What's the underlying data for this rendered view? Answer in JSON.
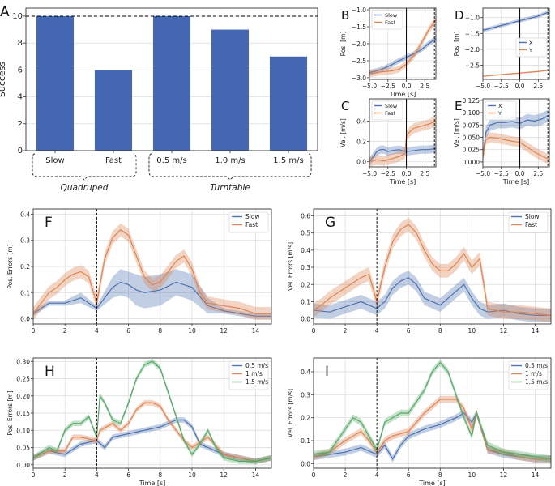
{
  "colors": {
    "blue": "#4c72b0",
    "orange": "#dd8452",
    "green": "#55a868",
    "bar": "#4567b3",
    "grid": "#d9d9d9",
    "axis": "#333333"
  },
  "chart_data": [
    {
      "panel_letter": "A",
      "type": "bar",
      "ylabel": "Success",
      "ylim": [
        0,
        10.6
      ],
      "yticks": [
        0,
        2,
        4,
        6,
        8,
        10
      ],
      "categories": [
        "Slow",
        "Fast",
        "0.5 m/s",
        "1.0 m/s",
        "1.5 m/s"
      ],
      "values": [
        10,
        6,
        10,
        9,
        7
      ],
      "reference_line": 10,
      "groups": [
        {
          "label": "Quadruped",
          "members": [
            0,
            1
          ]
        },
        {
          "label": "Turntable",
          "members": [
            2,
            3,
            4
          ]
        }
      ]
    },
    {
      "panel_letter": "B",
      "type": "line",
      "xlabel": "Time [s]",
      "ylabel": "Pos. [m]",
      "xlim": [
        -5,
        4
      ],
      "ylim": [
        -3.05,
        -0.95
      ],
      "xticks": [
        -5.0,
        -2.5,
        0.0,
        2.5
      ],
      "yticks": [
        -3.0,
        -2.5,
        -2.0,
        -1.5,
        -1.0
      ],
      "vline_solid": 0,
      "vline_dashed": 3.8,
      "legend": "top-left",
      "series": [
        {
          "name": "Slow",
          "color": "blue",
          "x": [
            -5,
            -4,
            -3,
            -2,
            -1,
            0,
            1,
            2,
            3,
            4
          ],
          "y": [
            -2.85,
            -2.8,
            -2.72,
            -2.62,
            -2.5,
            -2.4,
            -2.3,
            -2.18,
            -2.0,
            -1.85
          ],
          "band": 0.08
        },
        {
          "name": "Fast",
          "color": "orange",
          "x": [
            -5,
            -4,
            -3,
            -2,
            -1,
            0,
            1,
            2,
            3,
            4
          ],
          "y": [
            -2.88,
            -2.85,
            -2.82,
            -2.8,
            -2.75,
            -2.6,
            -2.35,
            -2.0,
            -1.6,
            -1.3
          ],
          "band": 0.1
        }
      ]
    },
    {
      "panel_letter": "C",
      "type": "line",
      "xlabel": "Time [s]",
      "ylabel": "Vel. [m/s]",
      "xlim": [
        -5,
        4
      ],
      "ylim": [
        -0.05,
        0.62
      ],
      "xticks": [
        -5.0,
        -2.5,
        0.0,
        2.5
      ],
      "yticks": [
        0.0,
        0.2,
        0.4
      ],
      "vline_solid": 0,
      "vline_dashed": 3.8,
      "legend": "top-left",
      "series": [
        {
          "name": "Slow",
          "color": "blue",
          "x": [
            -5,
            -4.5,
            -4,
            -3.5,
            -3,
            -2.5,
            -2,
            -1,
            0,
            1,
            2,
            3,
            4
          ],
          "y": [
            0.0,
            0.05,
            0.1,
            0.12,
            0.12,
            0.1,
            0.11,
            0.12,
            0.1,
            0.11,
            0.12,
            0.12,
            0.13
          ],
          "band": 0.04
        },
        {
          "name": "Fast",
          "color": "orange",
          "x": [
            -5,
            -4,
            -3,
            -2,
            -1,
            -0.2,
            0,
            0.5,
            1,
            2,
            3,
            4
          ],
          "y": [
            0.0,
            0.02,
            0.01,
            0.03,
            0.05,
            0.08,
            0.25,
            0.3,
            0.33,
            0.35,
            0.37,
            0.4
          ],
          "band": 0.05
        }
      ]
    },
    {
      "panel_letter": "D",
      "type": "line",
      "xlabel": "",
      "ylabel": "Pos. [m]",
      "xlim": [
        -5,
        4
      ],
      "ylim": [
        -2.95,
        -0.7
      ],
      "xticks": [
        -5.0,
        -2.5,
        0.0,
        2.5
      ],
      "yticks": [
        -2.5,
        -2.0,
        -1.5,
        -1.0
      ],
      "vline_solid": 0,
      "vline_dashed": 3.8,
      "legend": "center-right",
      "series": [
        {
          "name": "X",
          "color": "blue",
          "x": [
            -5,
            -2.5,
            0,
            2.5,
            4
          ],
          "y": [
            -1.4,
            -1.25,
            -1.1,
            -0.95,
            -0.82
          ],
          "band": 0.06
        },
        {
          "name": "Y",
          "color": "orange",
          "x": [
            -5,
            -2.5,
            0,
            2.5,
            4
          ],
          "y": [
            -2.85,
            -2.8,
            -2.75,
            -2.7,
            -2.66
          ],
          "band": 0.02
        }
      ]
    },
    {
      "panel_letter": "E",
      "type": "line",
      "xlabel": "Time [s]",
      "ylabel": "Vel. [m/s]",
      "xlim": [
        -5,
        4
      ],
      "ylim": [
        -0.01,
        0.128
      ],
      "xticks": [
        -5.0,
        -2.5,
        0.0,
        2.5
      ],
      "yticks": [
        0.0,
        0.025,
        0.05,
        0.075,
        0.1,
        0.125
      ],
      "vline_solid": 0,
      "vline_dashed": 3.8,
      "legend": "top-left",
      "series": [
        {
          "name": "X",
          "color": "blue",
          "x": [
            -5,
            -4.6,
            -4,
            -3,
            -2,
            -1,
            0,
            1,
            2,
            3,
            4
          ],
          "y": [
            0.01,
            0.06,
            0.075,
            0.08,
            0.08,
            0.082,
            0.078,
            0.085,
            0.083,
            0.087,
            0.095
          ],
          "band": 0.012
        },
        {
          "name": "Y",
          "color": "orange",
          "x": [
            -5,
            -4.6,
            -4,
            -3,
            -2,
            -1,
            0,
            1,
            2,
            3,
            4
          ],
          "y": [
            0.01,
            0.045,
            0.05,
            0.048,
            0.045,
            0.042,
            0.04,
            0.03,
            0.02,
            0.012,
            0.005
          ],
          "band": 0.01
        }
      ]
    },
    {
      "panel_letter": "F",
      "type": "line",
      "xlabel": "",
      "ylabel": "Pos. Errors [m]",
      "xlim": [
        0,
        15
      ],
      "ylim": [
        -0.02,
        0.42
      ],
      "xticks": [
        0,
        2,
        4,
        6,
        8,
        10,
        12,
        14
      ],
      "yticks": [
        0.0,
        0.1,
        0.2,
        0.3,
        0.4
      ],
      "vline_dashed": 4,
      "legend": "top-right",
      "series": [
        {
          "name": "Slow",
          "color": "blue",
          "x": [
            0,
            0.5,
            1,
            2,
            3,
            4,
            5,
            5.5,
            6,
            6.5,
            7,
            8,
            9,
            10,
            11,
            12,
            13,
            14,
            15
          ],
          "y": [
            0.02,
            0.04,
            0.06,
            0.06,
            0.08,
            0.04,
            0.12,
            0.14,
            0.13,
            0.11,
            0.1,
            0.11,
            0.14,
            0.12,
            0.05,
            0.03,
            0.02,
            0.01,
            0.01
          ],
          "band": [
            0.01,
            0.01,
            0.01,
            0.01,
            0.02,
            0.01,
            0.04,
            0.05,
            0.05,
            0.06,
            0.06,
            0.06,
            0.05,
            0.05,
            0.03,
            0.01,
            0.01,
            0.01,
            0.01
          ]
        },
        {
          "name": "Fast",
          "color": "orange",
          "x": [
            0,
            0.5,
            1,
            1.5,
            2,
            2.5,
            3,
            3.5,
            4,
            4.5,
            5,
            5.5,
            6,
            6.5,
            7,
            7.5,
            8,
            8.5,
            9,
            9.5,
            10,
            10.5,
            11,
            12,
            13,
            14,
            15
          ],
          "y": [
            0.02,
            0.06,
            0.1,
            0.12,
            0.15,
            0.17,
            0.18,
            0.16,
            0.06,
            0.23,
            0.31,
            0.34,
            0.32,
            0.24,
            0.16,
            0.13,
            0.14,
            0.18,
            0.22,
            0.24,
            0.19,
            0.1,
            0.06,
            0.05,
            0.04,
            0.02,
            0.02
          ],
          "band": 0.025
        }
      ]
    },
    {
      "panel_letter": "G",
      "type": "line",
      "xlabel": "",
      "ylabel": "Vel. Errors [m/s]",
      "xlim": [
        0,
        15
      ],
      "ylim": [
        -0.03,
        0.64
      ],
      "xticks": [
        0,
        2,
        4,
        6,
        8,
        10,
        12,
        14
      ],
      "yticks": [
        0.0,
        0.1,
        0.2,
        0.3,
        0.4,
        0.5,
        0.6
      ],
      "vline_dashed": 4,
      "legend": "top-right",
      "series": [
        {
          "name": "Slow",
          "color": "blue",
          "x": [
            0,
            1,
            2,
            3,
            4,
            4.5,
            5,
            5.5,
            6,
            6.5,
            7,
            8,
            9,
            9.5,
            10,
            10.5,
            11,
            12,
            13,
            14,
            15
          ],
          "y": [
            0.05,
            0.04,
            0.07,
            0.1,
            0.06,
            0.1,
            0.18,
            0.22,
            0.24,
            0.2,
            0.12,
            0.08,
            0.16,
            0.2,
            0.12,
            0.06,
            0.04,
            0.05,
            0.03,
            0.02,
            0.02
          ],
          "band": 0.04
        },
        {
          "name": "Fast",
          "color": "orange",
          "x": [
            0,
            0.5,
            1,
            1.5,
            2,
            2.5,
            3,
            3.5,
            4,
            4.5,
            5,
            5.5,
            6,
            6.5,
            7,
            7.5,
            8,
            8.5,
            9,
            9.5,
            10,
            10.5,
            11,
            12,
            13,
            14,
            15
          ],
          "y": [
            0.05,
            0.08,
            0.12,
            0.15,
            0.18,
            0.21,
            0.24,
            0.26,
            0.1,
            0.3,
            0.45,
            0.52,
            0.55,
            0.5,
            0.4,
            0.32,
            0.28,
            0.28,
            0.32,
            0.38,
            0.3,
            0.35,
            0.06,
            0.04,
            0.04,
            0.03,
            0.02
          ],
          "band": 0.04
        }
      ]
    },
    {
      "panel_letter": "H",
      "type": "line",
      "xlabel": "Time [s]",
      "ylabel": "Pos. Errors [m]",
      "xlim": [
        0,
        15
      ],
      "ylim": [
        -0.01,
        0.31
      ],
      "xticks": [
        0,
        2,
        4,
        6,
        8,
        10,
        12,
        14
      ],
      "yticks": [
        0.0,
        0.05,
        0.1,
        0.15,
        0.2,
        0.25,
        0.3
      ],
      "vline_dashed": 4,
      "legend": "top-right",
      "series": [
        {
          "name": "0.5 m/s",
          "color": "blue",
          "x": [
            0,
            1,
            2,
            3,
            4,
            4.5,
            5,
            6,
            7,
            8,
            9,
            9.5,
            10,
            10.5,
            11,
            12,
            13,
            14,
            15
          ],
          "y": [
            0.02,
            0.04,
            0.03,
            0.06,
            0.07,
            0.05,
            0.08,
            0.09,
            0.1,
            0.11,
            0.13,
            0.13,
            0.11,
            0.06,
            0.05,
            0.03,
            0.02,
            0.01,
            0.02
          ],
          "band": 0.008
        },
        {
          "name": "1 m/s",
          "color": "orange",
          "x": [
            0,
            1,
            2,
            2.5,
            3,
            4,
            4.2,
            5,
            5.5,
            6,
            6.5,
            7,
            7.5,
            8,
            8.5,
            9,
            9.5,
            10,
            11,
            12,
            13,
            14,
            15
          ],
          "y": [
            0.02,
            0.04,
            0.04,
            0.08,
            0.08,
            0.07,
            0.1,
            0.12,
            0.1,
            0.12,
            0.16,
            0.18,
            0.18,
            0.17,
            0.13,
            0.1,
            0.07,
            0.05,
            0.08,
            0.03,
            0.02,
            0.01,
            0.02
          ],
          "band": 0.008
        },
        {
          "name": "1.5 m/s",
          "color": "green",
          "x": [
            0,
            1,
            1.5,
            2,
            2.5,
            3,
            3.5,
            4,
            4.2,
            4.5,
            5,
            5.5,
            6,
            6.5,
            7,
            7.5,
            8,
            8.5,
            9,
            9.5,
            10,
            10.5,
            11,
            11.5,
            12,
            13,
            14,
            15
          ],
          "y": [
            0.02,
            0.05,
            0.04,
            0.1,
            0.12,
            0.12,
            0.14,
            0.08,
            0.2,
            0.18,
            0.13,
            0.12,
            0.18,
            0.25,
            0.29,
            0.3,
            0.28,
            0.21,
            0.14,
            0.07,
            0.03,
            0.06,
            0.1,
            0.05,
            0.02,
            0.01,
            0.01,
            0.02
          ],
          "band": 0.008
        }
      ]
    },
    {
      "panel_letter": "I",
      "type": "line",
      "xlabel": "Time [s]",
      "ylabel": "Vel. Errors [m/s]",
      "xlim": [
        0,
        15
      ],
      "ylim": [
        -0.02,
        0.46
      ],
      "xticks": [
        0,
        2,
        4,
        6,
        8,
        10,
        12,
        14
      ],
      "yticks": [
        0.0,
        0.1,
        0.2,
        0.3,
        0.4
      ],
      "vline_dashed": 4,
      "legend": "top-right",
      "series": [
        {
          "name": "0.5 m/s",
          "color": "blue",
          "x": [
            0,
            1,
            2,
            3,
            4,
            4.5,
            5,
            5.5,
            6,
            7,
            8,
            9,
            9.5,
            10,
            10.3,
            11,
            12,
            13,
            14,
            15
          ],
          "y": [
            0.03,
            0.04,
            0.05,
            0.07,
            0.04,
            0.08,
            0.02,
            0.08,
            0.12,
            0.15,
            0.17,
            0.2,
            0.22,
            0.18,
            0.22,
            0.06,
            0.04,
            0.03,
            0.02,
            0.02
          ],
          "band": 0.015
        },
        {
          "name": "1 m/s",
          "color": "orange",
          "x": [
            0,
            1,
            2,
            3,
            3.5,
            4,
            4.5,
            5,
            5.5,
            6,
            7,
            8,
            9,
            9.5,
            10,
            10.3,
            11,
            12,
            13,
            14,
            15
          ],
          "y": [
            0.03,
            0.05,
            0.1,
            0.14,
            0.1,
            0.05,
            0.1,
            0.12,
            0.13,
            0.14,
            0.22,
            0.28,
            0.28,
            0.24,
            0.15,
            0.22,
            0.06,
            0.05,
            0.03,
            0.02,
            0.02
          ],
          "band": 0.015
        },
        {
          "name": "1.5 m/s",
          "color": "green",
          "x": [
            0,
            1,
            2,
            2.5,
            3,
            3.5,
            4,
            4.5,
            5,
            5.5,
            6,
            7,
            7.5,
            8,
            8.5,
            9,
            9.5,
            10,
            10.3,
            11,
            12,
            13,
            14,
            15
          ],
          "y": [
            0.04,
            0.05,
            0.15,
            0.2,
            0.18,
            0.12,
            0.06,
            0.18,
            0.2,
            0.22,
            0.22,
            0.32,
            0.4,
            0.44,
            0.4,
            0.3,
            0.2,
            0.12,
            0.22,
            0.08,
            0.05,
            0.04,
            0.03,
            0.02
          ],
          "band": 0.015
        }
      ]
    }
  ]
}
